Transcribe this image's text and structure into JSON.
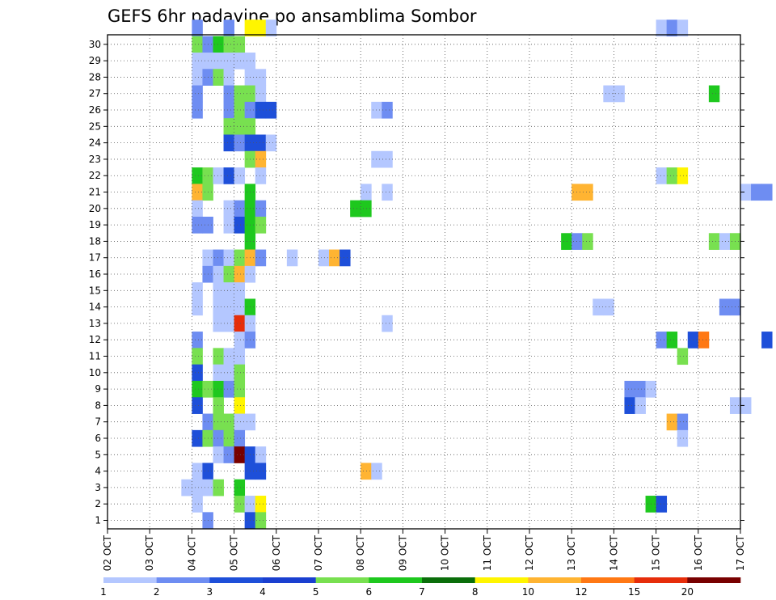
{
  "chart_data": {
    "type": "heatmap",
    "title": "GEFS 6hr padavine po ansamblima Sombor",
    "xlabel": "",
    "ylabel": "",
    "x_tick_labels": [
      "02 OCT",
      "03 OCT",
      "04 OCT",
      "05 OCT",
      "06 OCT",
      "07 OCT",
      "08 OCT",
      "09 OCT",
      "10 OCT",
      "11 OCT",
      "12 OCT",
      "13 OCT",
      "14 OCT",
      "15 OCT",
      "16 OCT",
      "17 OCT"
    ],
    "y_tick_labels": [
      "1",
      "2",
      "3",
      "4",
      "5",
      "6",
      "7",
      "8",
      "9",
      "10",
      "11",
      "12",
      "13",
      "14",
      "15",
      "16",
      "17",
      "18",
      "19",
      "20",
      "21",
      "22",
      "23",
      "24",
      "25",
      "26",
      "27",
      "28",
      "29",
      "30"
    ],
    "grid": true,
    "colorbar": {
      "labels": [
        "1",
        "2",
        "3",
        "4",
        "5",
        "6",
        "7",
        "8",
        "10",
        "12",
        "15",
        "20"
      ],
      "colors": [
        "#b4c7ff",
        "#6e8df2",
        "#1e4fd9",
        "#1a3fd0",
        "#78e050",
        "#1ec81e",
        "#0a6e0a",
        "#fff500",
        "#ffb432",
        "#ff7814",
        "#e62d0a",
        "#780000"
      ]
    },
    "column_unit": "6-hour step (column 0 = 02 OCT 00z)",
    "cells": [
      [
        30,
        8,
        2
      ],
      [
        30,
        11,
        2
      ],
      [
        30,
        13,
        8
      ],
      [
        30,
        14,
        8
      ],
      [
        30,
        15,
        1
      ],
      [
        30,
        52,
        1
      ],
      [
        30,
        53,
        2
      ],
      [
        30,
        54,
        1
      ],
      [
        30,
        79,
        5
      ],
      [
        30,
        81,
        2
      ],
      [
        29,
        8,
        5
      ],
      [
        29,
        9,
        2
      ],
      [
        29,
        10,
        6
      ],
      [
        29,
        11,
        5
      ],
      [
        29,
        12,
        5
      ],
      [
        29,
        76,
        6
      ],
      [
        29,
        94,
        2
      ],
      [
        28,
        8,
        1
      ],
      [
        28,
        9,
        1
      ],
      [
        28,
        10,
        1
      ],
      [
        28,
        11,
        1
      ],
      [
        28,
        12,
        1
      ],
      [
        28,
        13,
        1
      ],
      [
        28,
        80,
        2
      ],
      [
        28,
        82,
        2
      ],
      [
        27,
        8,
        1
      ],
      [
        27,
        9,
        2
      ],
      [
        27,
        10,
        5
      ],
      [
        27,
        11,
        1
      ],
      [
        27,
        13,
        1
      ],
      [
        27,
        14,
        1
      ],
      [
        27,
        70,
        1
      ],
      [
        27,
        71,
        1
      ],
      [
        27,
        84,
        6
      ],
      [
        27,
        85,
        6
      ],
      [
        27,
        86,
        2
      ],
      [
        26,
        8,
        2
      ],
      [
        26,
        11,
        2
      ],
      [
        26,
        12,
        5
      ],
      [
        26,
        13,
        5
      ],
      [
        26,
        14,
        1
      ],
      [
        26,
        47,
        1
      ],
      [
        26,
        48,
        1
      ],
      [
        26,
        57,
        6
      ],
      [
        26,
        73,
        1
      ],
      [
        26,
        74,
        1
      ],
      [
        26,
        75,
        2
      ],
      [
        26,
        76,
        1
      ],
      [
        26,
        77,
        2
      ],
      [
        26,
        78,
        6
      ],
      [
        25,
        8,
        2
      ],
      [
        25,
        11,
        2
      ],
      [
        25,
        12,
        5
      ],
      [
        25,
        13,
        2
      ],
      [
        25,
        14,
        3
      ],
      [
        25,
        15,
        3
      ],
      [
        25,
        25,
        1
      ],
      [
        25,
        26,
        2
      ],
      [
        25,
        73,
        1
      ],
      [
        25,
        89,
        2
      ],
      [
        25,
        97,
        1
      ],
      [
        24,
        11,
        5
      ],
      [
        24,
        12,
        5
      ],
      [
        24,
        13,
        5
      ],
      [
        23,
        11,
        3
      ],
      [
        23,
        12,
        2
      ],
      [
        23,
        13,
        3
      ],
      [
        23,
        14,
        3
      ],
      [
        23,
        15,
        1
      ],
      [
        22,
        13,
        5
      ],
      [
        22,
        14,
        10
      ],
      [
        22,
        25,
        1
      ],
      [
        22,
        26,
        1
      ],
      [
        22,
        78,
        1
      ],
      [
        22,
        79,
        1
      ],
      [
        22,
        80,
        1
      ],
      [
        22,
        84,
        1
      ],
      [
        22,
        85,
        2
      ],
      [
        22,
        86,
        8
      ],
      [
        21,
        8,
        6
      ],
      [
        21,
        9,
        5
      ],
      [
        21,
        10,
        1
      ],
      [
        21,
        11,
        3
      ],
      [
        21,
        12,
        1
      ],
      [
        21,
        14,
        1
      ],
      [
        21,
        52,
        1
      ],
      [
        21,
        53,
        5
      ],
      [
        21,
        54,
        8
      ],
      [
        21,
        91,
        1
      ],
      [
        21,
        94,
        5
      ],
      [
        21,
        95,
        10
      ],
      [
        21,
        96,
        2
      ],
      [
        21,
        97,
        8
      ],
      [
        21,
        98,
        10
      ],
      [
        20,
        8,
        10
      ],
      [
        20,
        9,
        5
      ],
      [
        20,
        13,
        6
      ],
      [
        20,
        24,
        1
      ],
      [
        20,
        26,
        1
      ],
      [
        20,
        44,
        10
      ],
      [
        20,
        45,
        10
      ],
      [
        20,
        60,
        1
      ],
      [
        20,
        61,
        2
      ],
      [
        20,
        62,
        2
      ],
      [
        20,
        64,
        1
      ],
      [
        20,
        67,
        1
      ],
      [
        20,
        68,
        10
      ],
      [
        20,
        69,
        1
      ],
      [
        20,
        70,
        2
      ],
      [
        20,
        71,
        2
      ],
      [
        20,
        84,
        1
      ],
      [
        20,
        85,
        5
      ],
      [
        20,
        95,
        2
      ],
      [
        19,
        8,
        1
      ],
      [
        19,
        11,
        1
      ],
      [
        19,
        12,
        2
      ],
      [
        19,
        13,
        6
      ],
      [
        19,
        14,
        2
      ],
      [
        19,
        23,
        6
      ],
      [
        19,
        24,
        6
      ],
      [
        19,
        85,
        8
      ],
      [
        18,
        8,
        2
      ],
      [
        18,
        9,
        2
      ],
      [
        18,
        11,
        1
      ],
      [
        18,
        12,
        3
      ],
      [
        18,
        13,
        6
      ],
      [
        18,
        14,
        5
      ],
      [
        18,
        73,
        1
      ],
      [
        18,
        74,
        2
      ],
      [
        18,
        75,
        15
      ],
      [
        18,
        78,
        1
      ],
      [
        17,
        13,
        6
      ],
      [
        17,
        43,
        6
      ],
      [
        17,
        44,
        2
      ],
      [
        17,
        45,
        5
      ],
      [
        17,
        57,
        5
      ],
      [
        17,
        58,
        1
      ],
      [
        17,
        59,
        5
      ],
      [
        17,
        73,
        1
      ],
      [
        17,
        75,
        1
      ],
      [
        17,
        76,
        5
      ],
      [
        17,
        77,
        2
      ],
      [
        17,
        78,
        2
      ],
      [
        16,
        9,
        1
      ],
      [
        16,
        10,
        2
      ],
      [
        16,
        11,
        1
      ],
      [
        16,
        12,
        5
      ],
      [
        16,
        13,
        10
      ],
      [
        16,
        14,
        2
      ],
      [
        16,
        17,
        1
      ],
      [
        16,
        20,
        1
      ],
      [
        16,
        21,
        10
      ],
      [
        16,
        22,
        3
      ],
      [
        16,
        73,
        1
      ],
      [
        16,
        82,
        10
      ],
      [
        16,
        83,
        2
      ],
      [
        16,
        84,
        2
      ],
      [
        16,
        87,
        1
      ],
      [
        16,
        90,
        2
      ],
      [
        16,
        91,
        1
      ],
      [
        15,
        9,
        2
      ],
      [
        15,
        10,
        1
      ],
      [
        15,
        11,
        5
      ],
      [
        15,
        12,
        10
      ],
      [
        15,
        13,
        1
      ],
      [
        15,
        94,
        1
      ],
      [
        15,
        95,
        2
      ],
      [
        14,
        8,
        1
      ],
      [
        14,
        10,
        1
      ],
      [
        14,
        11,
        1
      ],
      [
        14,
        12,
        1
      ],
      [
        14,
        70,
        1
      ],
      [
        14,
        80,
        2
      ],
      [
        14,
        81,
        2
      ],
      [
        14,
        96,
        1
      ],
      [
        14,
        97,
        3
      ],
      [
        13,
        8,
        1
      ],
      [
        13,
        10,
        1
      ],
      [
        13,
        11,
        1
      ],
      [
        13,
        12,
        1
      ],
      [
        13,
        13,
        6
      ],
      [
        13,
        46,
        1
      ],
      [
        13,
        47,
        1
      ],
      [
        13,
        58,
        2
      ],
      [
        13,
        59,
        2
      ],
      [
        12,
        10,
        1
      ],
      [
        12,
        11,
        1
      ],
      [
        12,
        12,
        15
      ],
      [
        12,
        13,
        1
      ],
      [
        12,
        26,
        1
      ],
      [
        12,
        74,
        1
      ],
      [
        12,
        76,
        1
      ],
      [
        12,
        78,
        2
      ],
      [
        12,
        81,
        3
      ],
      [
        12,
        82,
        3
      ],
      [
        11,
        8,
        2
      ],
      [
        11,
        12,
        1
      ],
      [
        11,
        13,
        2
      ],
      [
        11,
        52,
        2
      ],
      [
        11,
        53,
        6
      ],
      [
        11,
        55,
        3
      ],
      [
        11,
        56,
        12
      ],
      [
        11,
        62,
        3
      ],
      [
        10,
        8,
        5
      ],
      [
        10,
        10,
        5
      ],
      [
        10,
        11,
        1
      ],
      [
        10,
        12,
        1
      ],
      [
        10,
        54,
        5
      ],
      [
        9,
        8,
        3
      ],
      [
        9,
        10,
        1
      ],
      [
        9,
        11,
        1
      ],
      [
        9,
        12,
        5
      ],
      [
        9,
        76,
        2
      ],
      [
        8,
        8,
        6
      ],
      [
        8,
        9,
        5
      ],
      [
        8,
        10,
        6
      ],
      [
        8,
        11,
        2
      ],
      [
        8,
        12,
        5
      ],
      [
        8,
        49,
        2
      ],
      [
        8,
        50,
        2
      ],
      [
        8,
        51,
        1
      ],
      [
        8,
        76,
        1
      ],
      [
        8,
        77,
        6
      ],
      [
        7,
        8,
        3
      ],
      [
        7,
        10,
        5
      ],
      [
        7,
        12,
        8
      ],
      [
        7,
        49,
        3
      ],
      [
        7,
        50,
        1
      ],
      [
        7,
        59,
        1
      ],
      [
        7,
        60,
        1
      ],
      [
        6,
        9,
        2
      ],
      [
        6,
        10,
        5
      ],
      [
        6,
        11,
        5
      ],
      [
        6,
        12,
        1
      ],
      [
        6,
        13,
        1
      ],
      [
        6,
        53,
        10
      ],
      [
        6,
        54,
        2
      ],
      [
        6,
        88,
        1
      ],
      [
        6,
        89,
        5
      ],
      [
        6,
        90,
        5
      ],
      [
        5,
        8,
        3
      ],
      [
        5,
        9,
        5
      ],
      [
        5,
        10,
        2
      ],
      [
        5,
        11,
        5
      ],
      [
        5,
        12,
        2
      ],
      [
        5,
        54,
        1
      ],
      [
        5,
        84,
        6
      ],
      [
        5,
        85,
        3
      ],
      [
        4,
        10,
        1
      ],
      [
        4,
        11,
        2
      ],
      [
        4,
        12,
        20
      ],
      [
        4,
        13,
        3
      ],
      [
        4,
        14,
        1
      ],
      [
        4,
        68,
        1
      ],
      [
        4,
        69,
        1
      ],
      [
        4,
        70,
        1
      ],
      [
        4,
        73,
        2
      ],
      [
        4,
        74,
        1
      ],
      [
        4,
        75,
        1
      ],
      [
        4,
        77,
        2
      ],
      [
        4,
        78,
        1
      ],
      [
        4,
        79,
        2
      ],
      [
        4,
        80,
        2
      ],
      [
        4,
        86,
        5
      ],
      [
        4,
        96,
        1
      ],
      [
        4,
        97,
        2
      ],
      [
        3,
        8,
        1
      ],
      [
        3,
        9,
        3
      ],
      [
        3,
        13,
        3
      ],
      [
        3,
        14,
        3
      ],
      [
        3,
        24,
        10
      ],
      [
        3,
        25,
        1
      ],
      [
        3,
        77,
        5
      ],
      [
        3,
        78,
        1
      ],
      [
        2,
        7,
        1
      ],
      [
        2,
        8,
        1
      ],
      [
        2,
        9,
        1
      ],
      [
        2,
        10,
        5
      ],
      [
        2,
        12,
        6
      ],
      [
        2,
        71,
        3
      ],
      [
        2,
        81,
        3
      ],
      [
        2,
        82,
        6
      ],
      [
        1,
        8,
        1
      ],
      [
        1,
        12,
        5
      ],
      [
        1,
        13,
        1
      ],
      [
        1,
        14,
        8
      ],
      [
        1,
        51,
        6
      ],
      [
        1,
        52,
        3
      ],
      [
        0,
        9,
        2
      ],
      [
        0,
        13,
        3
      ],
      [
        0,
        14,
        5
      ],
      [
        0,
        81,
        2
      ]
    ]
  }
}
